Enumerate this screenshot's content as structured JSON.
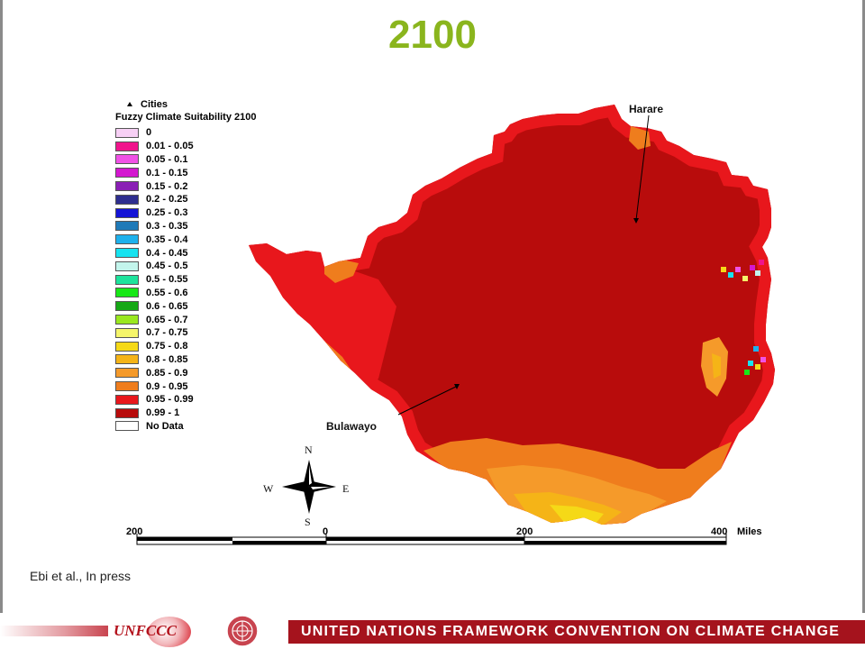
{
  "title": "2100",
  "legend": {
    "cities_label": "Cities",
    "title": "Fuzzy Climate Suitability 2100",
    "items": [
      {
        "label": "0",
        "color": "#f7d0f5"
      },
      {
        "label": "0.01 - 0.05",
        "color": "#f0148c"
      },
      {
        "label": "0.05 - 0.1",
        "color": "#f052e6"
      },
      {
        "label": "0.1 - 0.15",
        "color": "#d417d0"
      },
      {
        "label": "0.15 - 0.2",
        "color": "#8a1fb5"
      },
      {
        "label": "0.2 - 0.25",
        "color": "#2e2e8f"
      },
      {
        "label": "0.25 - 0.3",
        "color": "#1414d6"
      },
      {
        "label": "0.3 - 0.35",
        "color": "#1f7ab8"
      },
      {
        "label": "0.35 - 0.4",
        "color": "#1eb1ec"
      },
      {
        "label": "0.4 - 0.45",
        "color": "#17e3f0"
      },
      {
        "label": "0.45 - 0.5",
        "color": "#c3f5ec"
      },
      {
        "label": "0.5 - 0.55",
        "color": "#1de39c"
      },
      {
        "label": "0.55 - 0.6",
        "color": "#17e817"
      },
      {
        "label": "0.6 - 0.65",
        "color": "#16a816"
      },
      {
        "label": "0.65 - 0.7",
        "color": "#9ae81f"
      },
      {
        "label": "0.7 - 0.75",
        "color": "#f5f56a"
      },
      {
        "label": "0.75 - 0.8",
        "color": "#f5d917"
      },
      {
        "label": "0.8 - 0.85",
        "color": "#f5b417"
      },
      {
        "label": "0.85 - 0.9",
        "color": "#f59a2a"
      },
      {
        "label": "0.9 - 0.95",
        "color": "#ef7d1d"
      },
      {
        "label": "0.95 - 0.99",
        "color": "#e8171c"
      },
      {
        "label": "0.99 - 1",
        "color": "#b80c0c"
      },
      {
        "label": "No Data",
        "color": "#ffffff"
      }
    ]
  },
  "cities": {
    "harare": "Harare",
    "bulawayo": "Bulawayo"
  },
  "compass": {
    "n": "N",
    "s": "S",
    "e": "E",
    "w": "W"
  },
  "scale": {
    "labels": [
      "200",
      "0",
      "200",
      "400"
    ],
    "unit": "Miles"
  },
  "credit": "Ebi et al., In press",
  "footer": {
    "org_logo_text": "UNFCCC",
    "banner": "UNITED NATIONS FRAMEWORK CONVENTION ON CLIMATE CHANGE",
    "brand_color": "#a5131d",
    "emblem_icon": "un-emblem-icon"
  }
}
